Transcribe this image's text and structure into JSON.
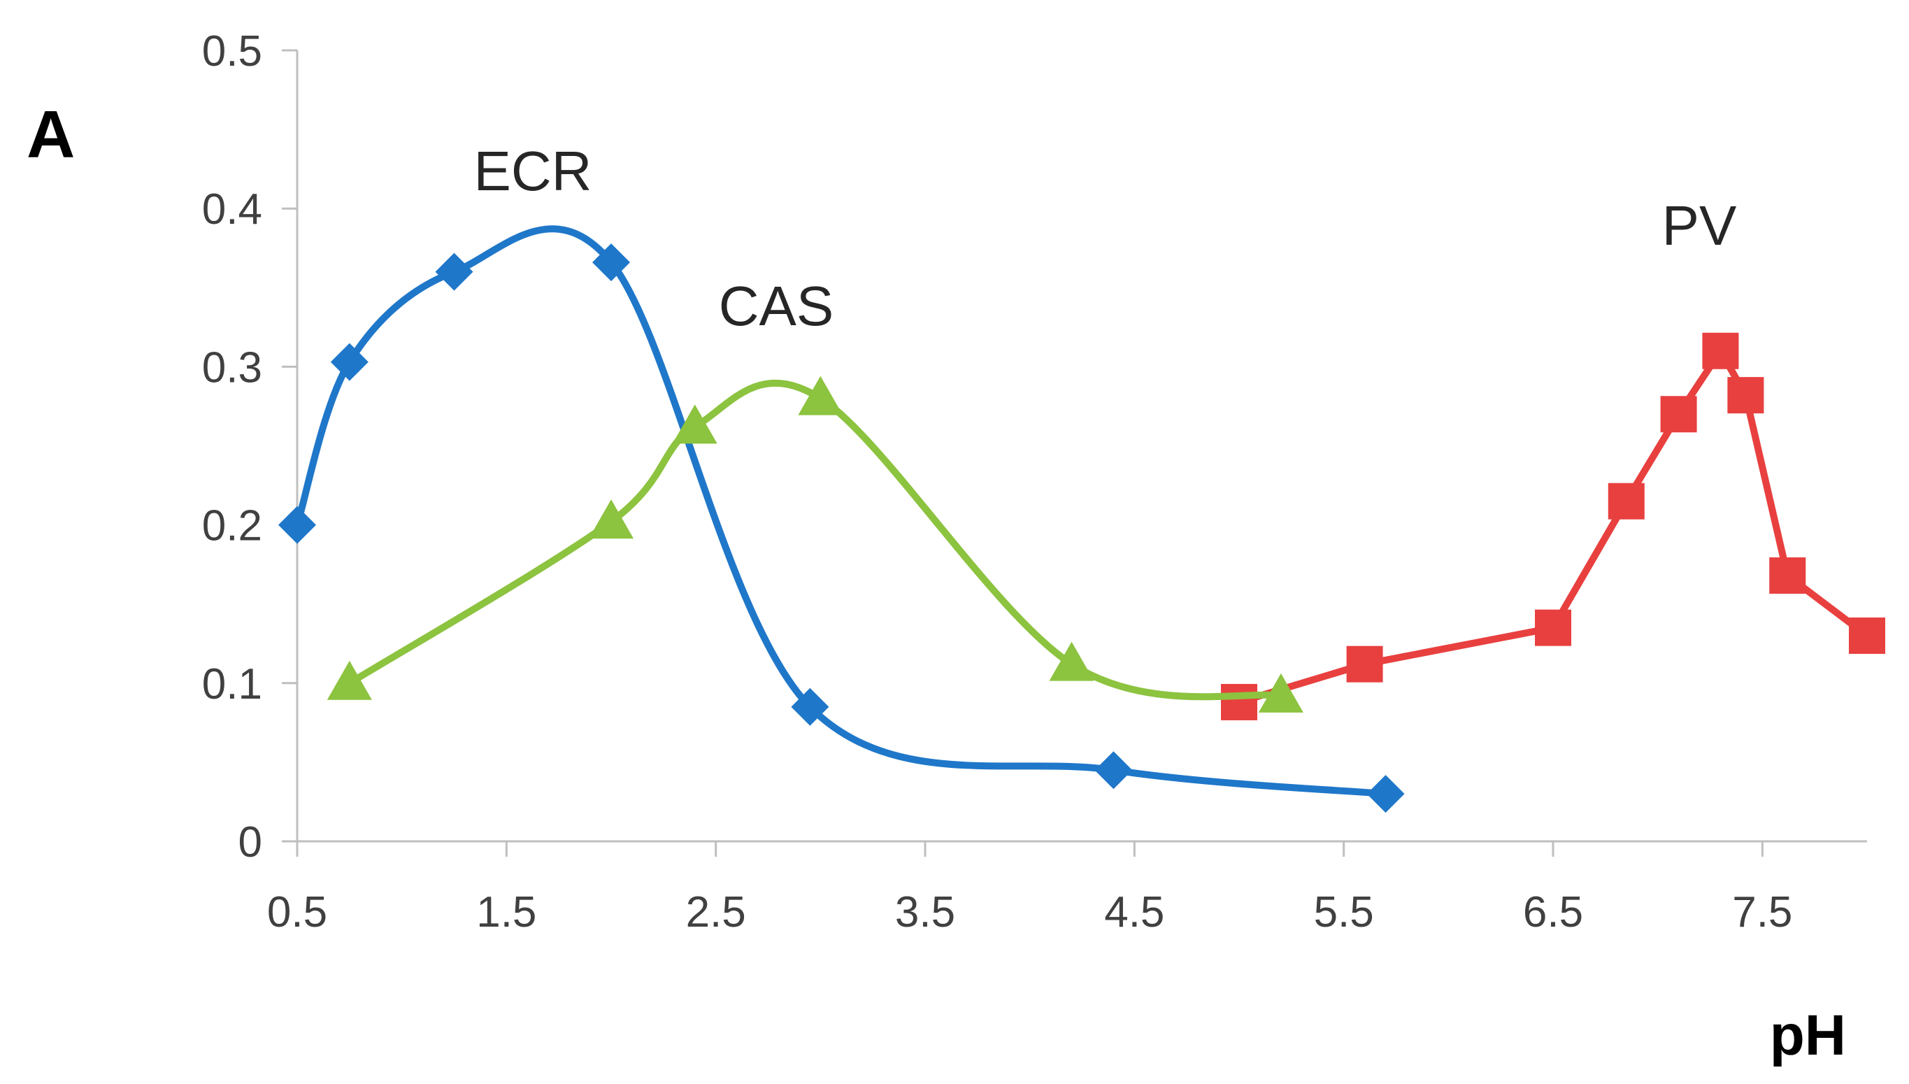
{
  "chart_data": {
    "type": "line",
    "panel_label": "A",
    "xlabel": "pH",
    "ylabel": "",
    "xlim": [
      0.5,
      8.0
    ],
    "ylim": [
      0,
      0.5
    ],
    "x_ticks": [
      "0.5",
      "1.5",
      "2.5",
      "3.5",
      "4.5",
      "5.5",
      "6.5",
      "7.5"
    ],
    "y_ticks": [
      "0",
      "0.1",
      "0.2",
      "0.3",
      "0.4",
      "0.5"
    ],
    "grid": false,
    "legend": "none",
    "series": [
      {
        "name": "ECR",
        "color": "#1f77c9",
        "marker": "diamond",
        "smooth": true,
        "x": [
          0.5,
          0.75,
          1.25,
          2.0,
          2.95,
          4.4,
          5.7
        ],
        "y": [
          0.2,
          0.303,
          0.36,
          0.366,
          0.085,
          0.045,
          0.03
        ]
      },
      {
        "name": "CAS",
        "color": "#8cc33f",
        "marker": "triangle",
        "smooth": true,
        "x": [
          0.75,
          2.0,
          2.4,
          3.0,
          4.2,
          5.2
        ],
        "y": [
          0.1,
          0.202,
          0.262,
          0.28,
          0.112,
          0.092
        ]
      },
      {
        "name": "PV",
        "color": "#e8403f",
        "marker": "square",
        "smooth": false,
        "x": [
          5.0,
          5.6,
          6.5,
          6.85,
          7.1,
          7.3,
          7.42,
          7.62,
          8.0
        ],
        "y": [
          0.088,
          0.112,
          0.135,
          0.215,
          0.27,
          0.31,
          0.282,
          0.168,
          0.13
        ]
      }
    ],
    "annotations": [
      {
        "text": "ECR",
        "series": "ECR"
      },
      {
        "text": "CAS",
        "series": "CAS"
      },
      {
        "text": "PV",
        "series": "PV"
      }
    ]
  }
}
